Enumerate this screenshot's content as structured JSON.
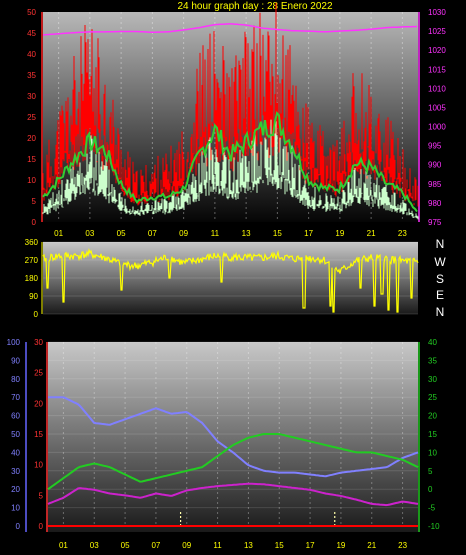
{
  "chart_data": [
    {
      "type": "line",
      "title": "24 hour graph day : 28 Enero 2022",
      "x_ticks": [
        "01",
        "03",
        "05",
        "07",
        "09",
        "11",
        "13",
        "15",
        "17",
        "19",
        "21",
        "23"
      ],
      "left_ticks": [
        "0",
        "5",
        "10",
        "15",
        "20",
        "25",
        "30",
        "35",
        "40",
        "45",
        "50"
      ],
      "right_ticks": [
        "975",
        "980",
        "985",
        "990",
        "995",
        "1000",
        "1005",
        "1010",
        "1015",
        "1020",
        "1025",
        "1030"
      ],
      "ylim_left": [
        0,
        50
      ],
      "ylim_right": [
        975,
        1030
      ],
      "colors": {
        "gust": "#ff0000",
        "avg": "#33cc33",
        "speed": "#ccffcc",
        "pressure": "#ff33ff",
        "bg_top": "#bbbbbb",
        "bg_bottom": "#000000"
      },
      "hours": [
        0,
        1,
        2,
        3,
        4,
        5,
        6,
        7,
        8,
        9,
        10,
        11,
        12,
        13,
        14,
        15,
        16,
        17,
        18,
        19,
        20,
        21,
        22,
        23,
        24
      ],
      "series": [
        {
          "key": "gust",
          "axis": "left",
          "values": [
            10,
            18,
            27,
            32,
            26,
            14,
            8,
            10,
            11,
            15,
            27,
            31,
            25,
            30,
            33,
            34,
            27,
            18,
            14,
            13,
            25,
            22,
            17,
            12,
            6
          ]
        },
        {
          "key": "avg",
          "axis": "left",
          "values": [
            6,
            10,
            15,
            19,
            17,
            9,
            5,
            6,
            6,
            8,
            16,
            22,
            16,
            19,
            22,
            24,
            18,
            10,
            8,
            8,
            14,
            13,
            9,
            7,
            2
          ]
        },
        {
          "key": "speed",
          "axis": "left",
          "values": [
            3,
            6,
            10,
            14,
            11,
            5,
            3,
            4,
            4,
            6,
            11,
            15,
            10,
            13,
            16,
            17,
            12,
            6,
            5,
            5,
            9,
            8,
            6,
            4,
            1
          ]
        },
        {
          "key": "pressure",
          "axis": "right",
          "values": [
            1024,
            1024.3,
            1024.6,
            1024.8,
            1024.8,
            1024.9,
            1024.9,
            1024.7,
            1024.8,
            1025.3,
            1025.9,
            1026.7,
            1026.9,
            1026.6,
            1025.8,
            1025.4,
            1025.1,
            1025.0,
            1024.8,
            1025.0,
            1025.2,
            1025.5,
            1025.9,
            1026.1,
            1026.2
          ]
        }
      ]
    },
    {
      "type": "line",
      "left_ticks": [
        "0",
        "90",
        "180",
        "270",
        "360"
      ],
      "ylim": [
        0,
        360
      ],
      "direction_labels": [
        "N",
        "W",
        "S",
        "E",
        "N"
      ],
      "colors": {
        "direction": "#ffff00"
      },
      "hours": [
        0,
        1,
        2,
        3,
        4,
        5,
        6,
        7,
        8,
        9,
        10,
        11,
        12,
        13,
        14,
        15,
        16,
        17,
        18,
        19,
        20,
        21,
        22,
        23,
        24
      ],
      "series": [
        {
          "key": "direction",
          "values": [
            275,
            290,
            290,
            300,
            280,
            250,
            240,
            260,
            285,
            255,
            270,
            290,
            285,
            280,
            280,
            290,
            275,
            280,
            270,
            210,
            265,
            280,
            275,
            265,
            260
          ]
        }
      ],
      "dips": [
        [
          0.3,
          130
        ],
        [
          1.3,
          60
        ],
        [
          5.0,
          120
        ],
        [
          8.1,
          180
        ],
        [
          11.4,
          160
        ],
        [
          16.7,
          30
        ],
        [
          18.4,
          40
        ],
        [
          18.6,
          10
        ],
        [
          20.3,
          130
        ],
        [
          21.2,
          40
        ],
        [
          21.7,
          100
        ],
        [
          22.1,
          20
        ],
        [
          22.7,
          10
        ],
        [
          23.6,
          80
        ]
      ]
    },
    {
      "type": "line",
      "x_ticks": [
        "01",
        "03",
        "05",
        "07",
        "09",
        "11",
        "13",
        "15",
        "17",
        "19",
        "21",
        "23"
      ],
      "humidity_ticks": [
        "0",
        "10",
        "20",
        "30",
        "40",
        "50",
        "60",
        "70",
        "80",
        "90",
        "100"
      ],
      "dewpoint_ticks": [
        "0",
        "5",
        "10",
        "15",
        "20",
        "25",
        "30"
      ],
      "temp_ticks": [
        "-10",
        "-5",
        "0",
        "5",
        "10",
        "15",
        "20",
        "25",
        "30",
        "35",
        "40"
      ],
      "ylim_humidity": [
        0,
        100
      ],
      "ylim_dewpoint": [
        0,
        30
      ],
      "ylim_temp": [
        -10,
        40
      ],
      "colors": {
        "humidity": "#8080ff",
        "temp": "#22cc22",
        "dewpoint": "#cc22cc",
        "rain": "#ff0000",
        "markers": "#ffffaa",
        "axis_humidity": "#6666ff",
        "axis_dewpoint": "#ff3333",
        "axis_temp": "#22cc22"
      },
      "hours": [
        0,
        1,
        2,
        3,
        4,
        5,
        6,
        7,
        8,
        9,
        10,
        11,
        12,
        13,
        14,
        15,
        16,
        17,
        18,
        19,
        20,
        21,
        22,
        23,
        24
      ],
      "series": [
        {
          "key": "humidity",
          "axis": "humidity",
          "values": [
            70,
            70,
            66,
            56,
            55,
            58,
            61,
            64,
            61,
            62,
            56,
            46,
            40,
            33,
            30,
            29,
            29,
            28,
            27,
            29,
            30,
            31,
            32,
            37,
            40
          ]
        },
        {
          "key": "temp",
          "axis": "temp",
          "values": [
            0,
            3,
            6,
            7,
            6,
            4,
            2,
            3,
            4,
            5,
            6,
            9,
            12,
            14,
            15,
            15,
            14,
            13,
            12,
            11,
            10,
            10,
            9,
            8,
            6
          ]
        },
        {
          "key": "dewpoint",
          "axis": "dewpoint",
          "values": [
            3.6,
            4.6,
            6.2,
            5.9,
            5.3,
            5.0,
            4.6,
            5.3,
            4.9,
            5.8,
            6.2,
            6.5,
            6.7,
            6.9,
            6.8,
            6.5,
            6.2,
            5.9,
            5.3,
            4.9,
            4.3,
            3.6,
            3.4,
            4.0,
            3.6
          ]
        },
        {
          "key": "rain",
          "axis": "dewpoint",
          "values": [
            0,
            0,
            0,
            0,
            0,
            0,
            0,
            0,
            0,
            0,
            0,
            0,
            0,
            0,
            0,
            0,
            0,
            0,
            0,
            0,
            0,
            0,
            0,
            0,
            0
          ]
        }
      ],
      "marker_hours": [
        8.6,
        18.6
      ]
    }
  ]
}
